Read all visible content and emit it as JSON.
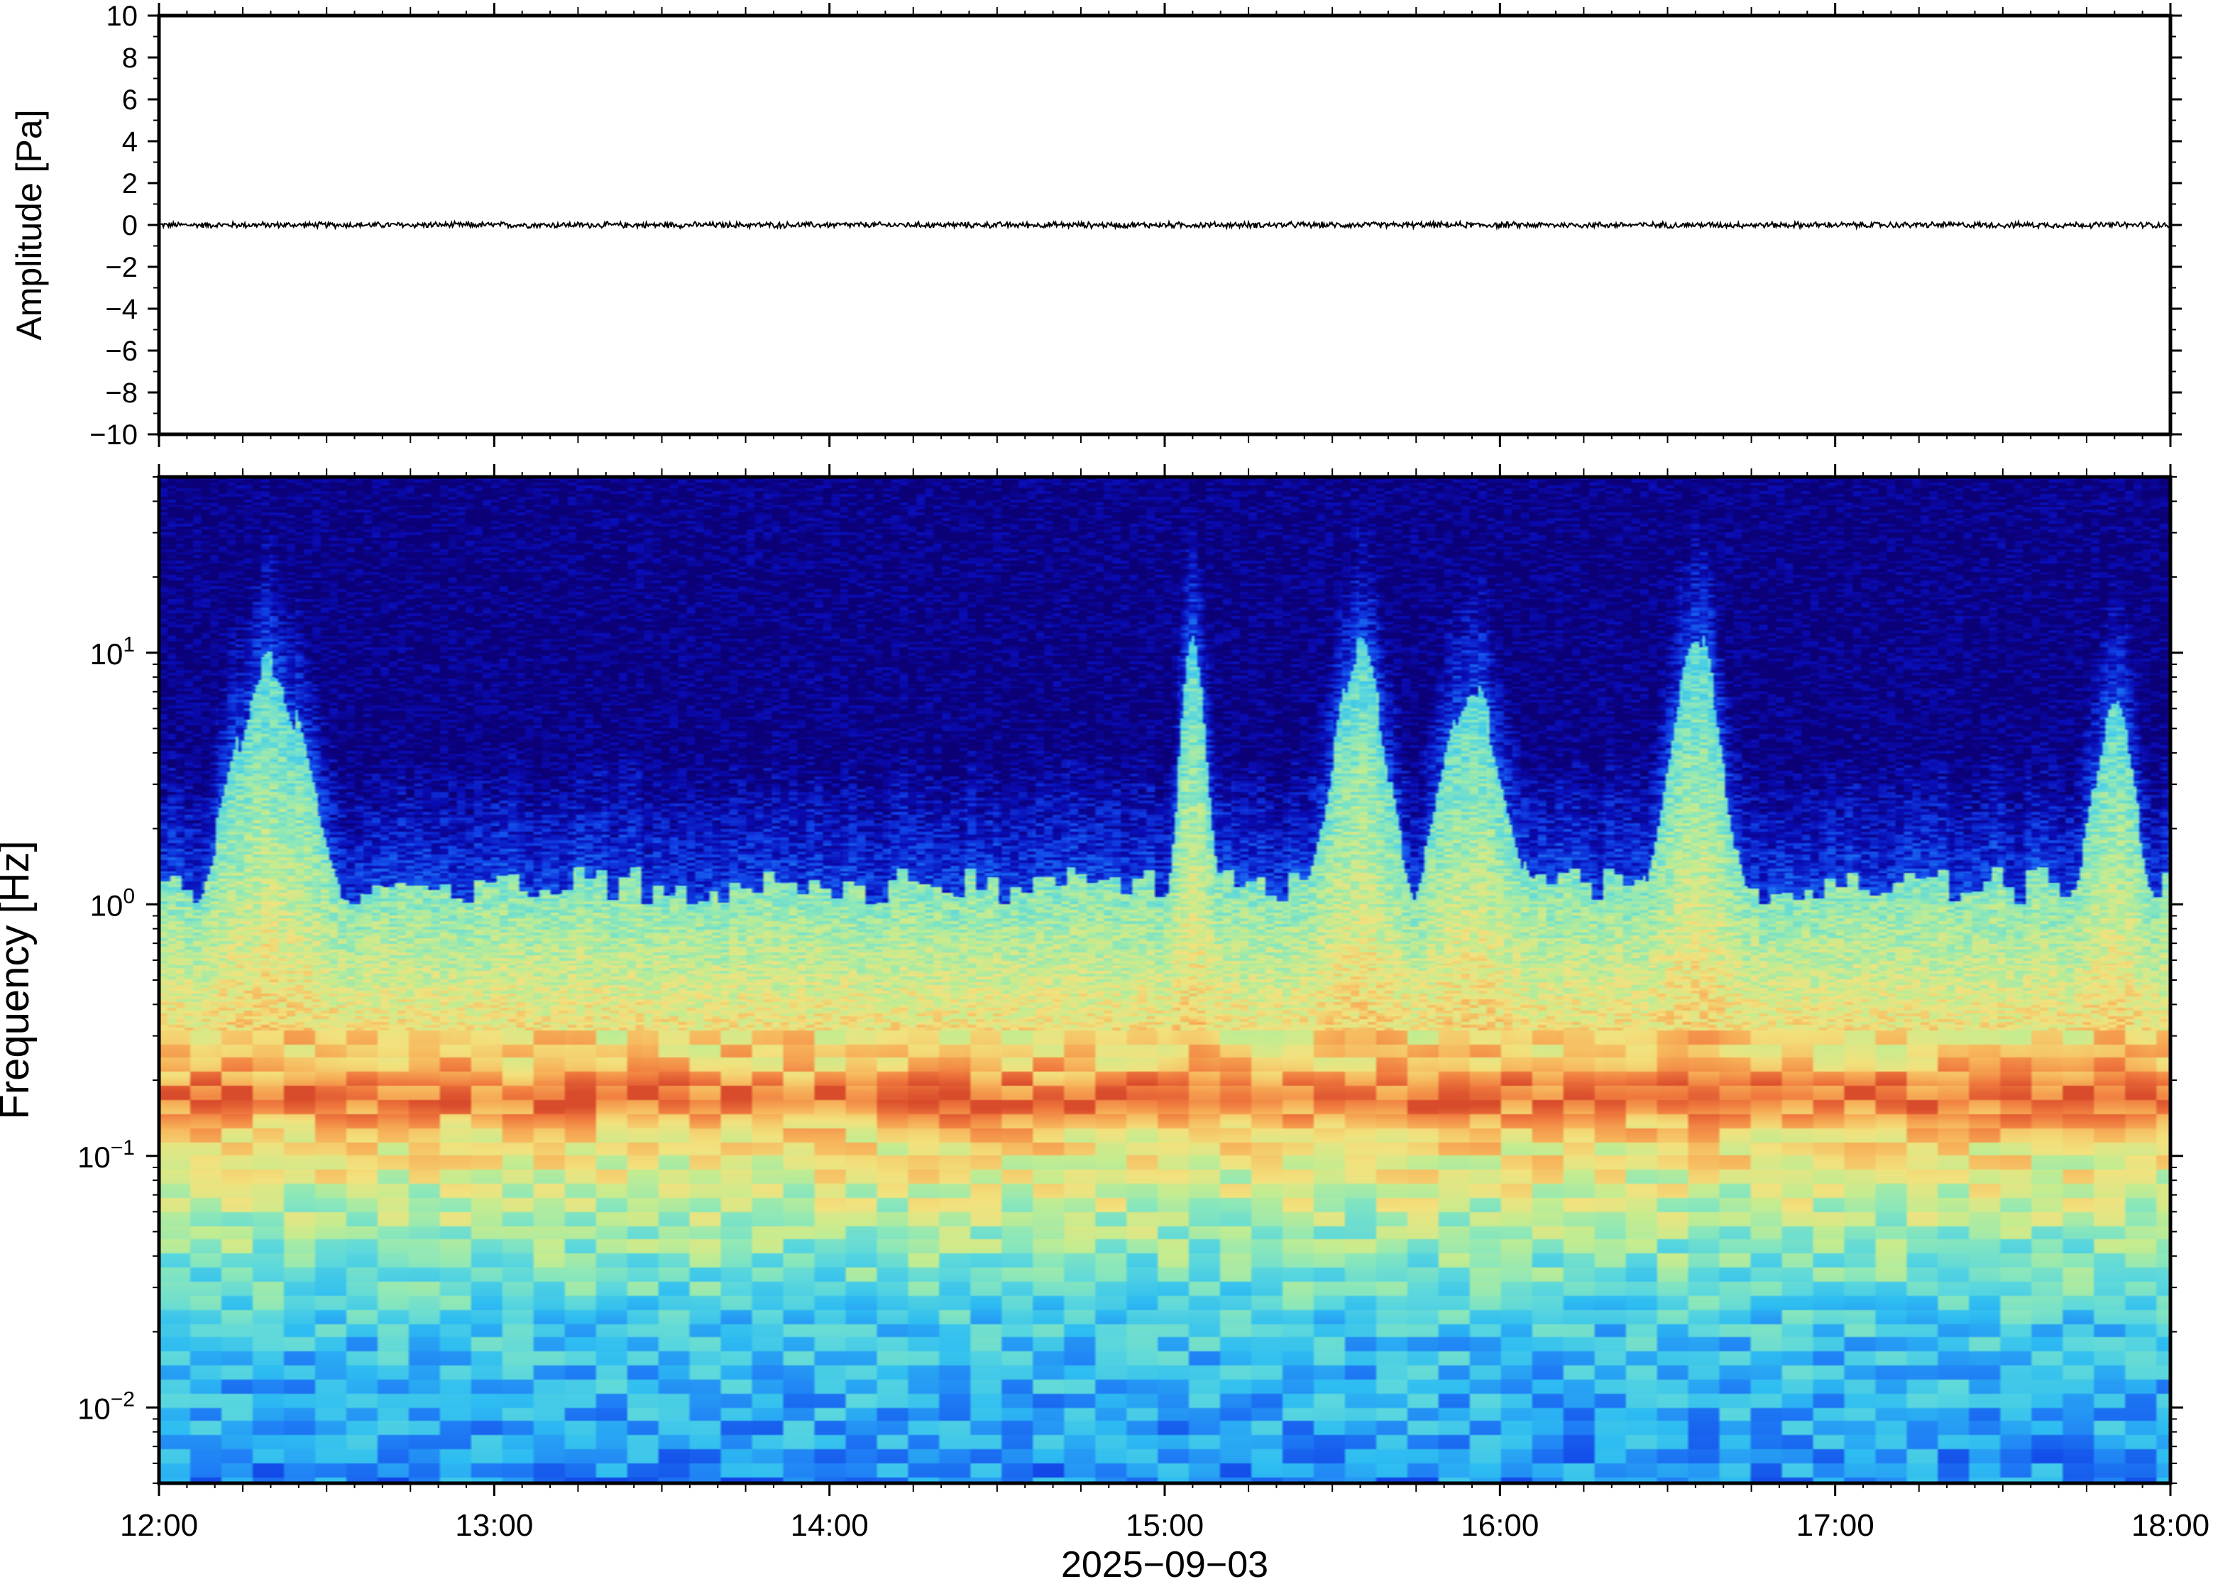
{
  "chart_data": [
    {
      "type": "line",
      "panel": "waveform",
      "ylabel": "Amplitude [Pa]",
      "ylim": [
        -10,
        10
      ],
      "yticks": [
        10,
        8,
        6,
        4,
        2,
        0,
        -2,
        -4,
        -6,
        -8,
        -10
      ],
      "ytick_labels": [
        "10",
        "8",
        "6",
        "4",
        "2",
        "0",
        "−2",
        "−4",
        "−6",
        "−8",
        "−10"
      ],
      "xlim_hours": [
        12,
        18
      ],
      "series": [
        {
          "trace": "pressure",
          "mean": 0.0,
          "noise_amplitude": 0.12,
          "color": "#000000"
        }
      ]
    },
    {
      "type": "heatmap",
      "panel": "spectrogram",
      "ylabel": "Frequency [Hz]",
      "yscale": "log",
      "ylim": [
        0.005,
        50
      ],
      "yticks": [
        {
          "base": "10",
          "exp": "1",
          "value": 10
        },
        {
          "base": "10",
          "exp": "0",
          "value": 1
        },
        {
          "base": "10",
          "exp": "−1",
          "value": 0.1
        },
        {
          "base": "10",
          "exp": "−2",
          "value": 0.01
        }
      ],
      "xlim_hours": [
        12,
        18
      ],
      "xtick_labels": [
        "12:00",
        "13:00",
        "14:00",
        "15:00",
        "16:00",
        "17:00",
        "18:00"
      ],
      "xlabel": "2025−09−03",
      "colormap": [
        "#0b0076",
        "#0a0cb4",
        "#1040e6",
        "#1f7ff5",
        "#2ebdf2",
        "#5ad7de",
        "#8ee8b8",
        "#c6ec8f",
        "#f2e27e",
        "#f7b45a",
        "#f07a3e",
        "#d84a2b"
      ],
      "microseism_peak_hz": 0.17,
      "high_frequency_bursts": [
        {
          "time": "12:20",
          "width_hours": 0.35,
          "strength": 0.9
        },
        {
          "time": "15:05",
          "width_hours": 0.12,
          "strength": 1.0
        },
        {
          "time": "15:35",
          "width_hours": 0.25,
          "strength": 0.95
        },
        {
          "time": "15:55",
          "width_hours": 0.3,
          "strength": 0.8
        },
        {
          "time": "16:35",
          "width_hours": 0.25,
          "strength": 1.0
        },
        {
          "time": "17:50",
          "width_hours": 0.2,
          "strength": 0.75
        }
      ]
    }
  ]
}
